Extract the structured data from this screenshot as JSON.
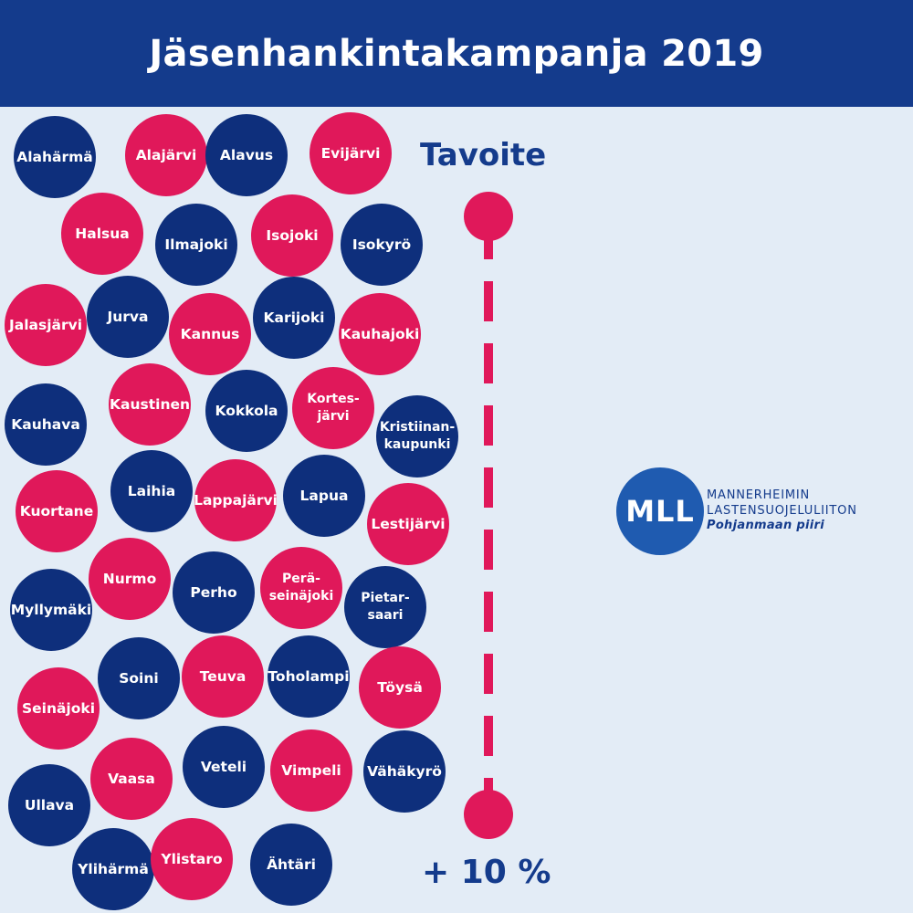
{
  "title": "Jäsenhankintakampanja 2019",
  "goal": {
    "label": "Tavoite",
    "target": "+ 10 %"
  },
  "logo": {
    "initials": "MLL",
    "line1": "MANNERHEIMIN",
    "line2": "LASTENSUOJELULIITON",
    "line3": "Pohjanmaan piiri"
  },
  "colors": {
    "header": "#143b8c",
    "navy": "#0e2f7c",
    "pink": "#e0185a",
    "background": "#e3ecf6",
    "logo": "#1f5bb0"
  },
  "municipalities": [
    {
      "name": "Alahärmä",
      "color": "navy"
    },
    {
      "name": "Alajärvi",
      "color": "pink"
    },
    {
      "name": "Alavus",
      "color": "navy"
    },
    {
      "name": "Evijärvi",
      "color": "pink"
    },
    {
      "name": "Halsua",
      "color": "pink"
    },
    {
      "name": "Ilmajoki",
      "color": "navy"
    },
    {
      "name": "Isojoki",
      "color": "pink"
    },
    {
      "name": "Isokyrö",
      "color": "navy"
    },
    {
      "name": "Jalasjärvi",
      "color": "pink"
    },
    {
      "name": "Jurva",
      "color": "navy"
    },
    {
      "name": "Kannus",
      "color": "pink"
    },
    {
      "name": "Karijoki",
      "color": "navy"
    },
    {
      "name": "Kauhajoki",
      "color": "pink"
    },
    {
      "name": "Kauhava",
      "color": "navy"
    },
    {
      "name": "Kaustinen",
      "color": "pink"
    },
    {
      "name": "Kokkola",
      "color": "navy"
    },
    {
      "name": "Kortes-\njärvi",
      "color": "pink"
    },
    {
      "name": "Kristiinan-\nkaupunki",
      "color": "navy"
    },
    {
      "name": "Kuortane",
      "color": "pink"
    },
    {
      "name": "Laihia",
      "color": "navy"
    },
    {
      "name": "Lappajärvi",
      "color": "pink"
    },
    {
      "name": "Lapua",
      "color": "navy"
    },
    {
      "name": "Lestijärvi",
      "color": "pink"
    },
    {
      "name": "Myllymäki",
      "color": "navy"
    },
    {
      "name": "Nurmo",
      "color": "pink"
    },
    {
      "name": "Perho",
      "color": "navy"
    },
    {
      "name": "Perä-\nseinäjoki",
      "color": "pink"
    },
    {
      "name": "Pietar-\nsaari",
      "color": "navy"
    },
    {
      "name": "Seinäjoki",
      "color": "pink"
    },
    {
      "name": "Soini",
      "color": "navy"
    },
    {
      "name": "Teuva",
      "color": "pink"
    },
    {
      "name": "Toholampi",
      "color": "navy"
    },
    {
      "name": "Töysä",
      "color": "pink"
    },
    {
      "name": "Ullava",
      "color": "navy"
    },
    {
      "name": "Vaasa",
      "color": "pink"
    },
    {
      "name": "Veteli",
      "color": "navy"
    },
    {
      "name": "Vimpeli",
      "color": "pink"
    },
    {
      "name": "Vähäkyrö",
      "color": "navy"
    },
    {
      "name": "Ylihärmä",
      "color": "navy"
    },
    {
      "name": "Ylistaro",
      "color": "pink"
    },
    {
      "name": "Ähtäri",
      "color": "navy"
    }
  ]
}
